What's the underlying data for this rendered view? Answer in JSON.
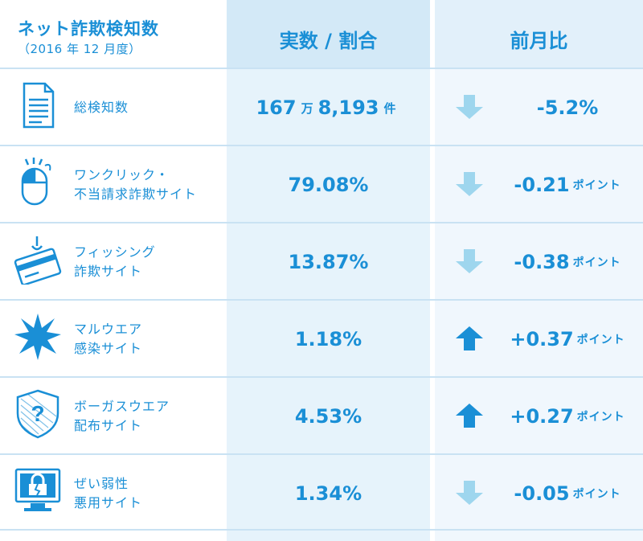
{
  "header": {
    "title": "ネット詐欺検知数",
    "subtitle": "（2016 年 12 月度）",
    "col_value": "実数 / 割合",
    "col_change": "前月比"
  },
  "colors": {
    "accent": "#1a8fd6",
    "arrow_down": "#9ed6ee",
    "arrow_up": "#1a8fd6"
  },
  "rows": [
    {
      "icon": "document-icon",
      "label_lines": [
        "総検知数"
      ],
      "value_parts": [
        "167",
        "万",
        "8,193",
        "件"
      ],
      "direction": "down",
      "change": "-5.2%",
      "change_unit": ""
    },
    {
      "icon": "mouse-click-icon",
      "label_lines": [
        "ワンクリック・",
        "不当請求詐欺サイト"
      ],
      "value_parts": [
        "79.08%"
      ],
      "direction": "down",
      "change": "-0.21",
      "change_unit": "ポイント"
    },
    {
      "icon": "credit-card-hook-icon",
      "label_lines": [
        "フィッシング",
        "詐欺サイト"
      ],
      "value_parts": [
        "13.87%"
      ],
      "direction": "down",
      "change": "-0.38",
      "change_unit": "ポイント"
    },
    {
      "icon": "malware-burst-icon",
      "label_lines": [
        "マルウエア",
        "感染サイト"
      ],
      "value_parts": [
        "1.18%"
      ],
      "direction": "up",
      "change": "+0.37",
      "change_unit": "ポイント"
    },
    {
      "icon": "shield-question-icon",
      "label_lines": [
        "ボーガスウエア",
        "配布サイト"
      ],
      "value_parts": [
        "4.53%"
      ],
      "direction": "up",
      "change": "+0.27",
      "change_unit": "ポイント"
    },
    {
      "icon": "broken-lock-monitor-icon",
      "label_lines": [
        "ぜい弱性",
        "悪用サイト"
      ],
      "value_parts": [
        "1.34%"
      ],
      "direction": "down",
      "change": "-0.05",
      "change_unit": "ポイント"
    }
  ]
}
